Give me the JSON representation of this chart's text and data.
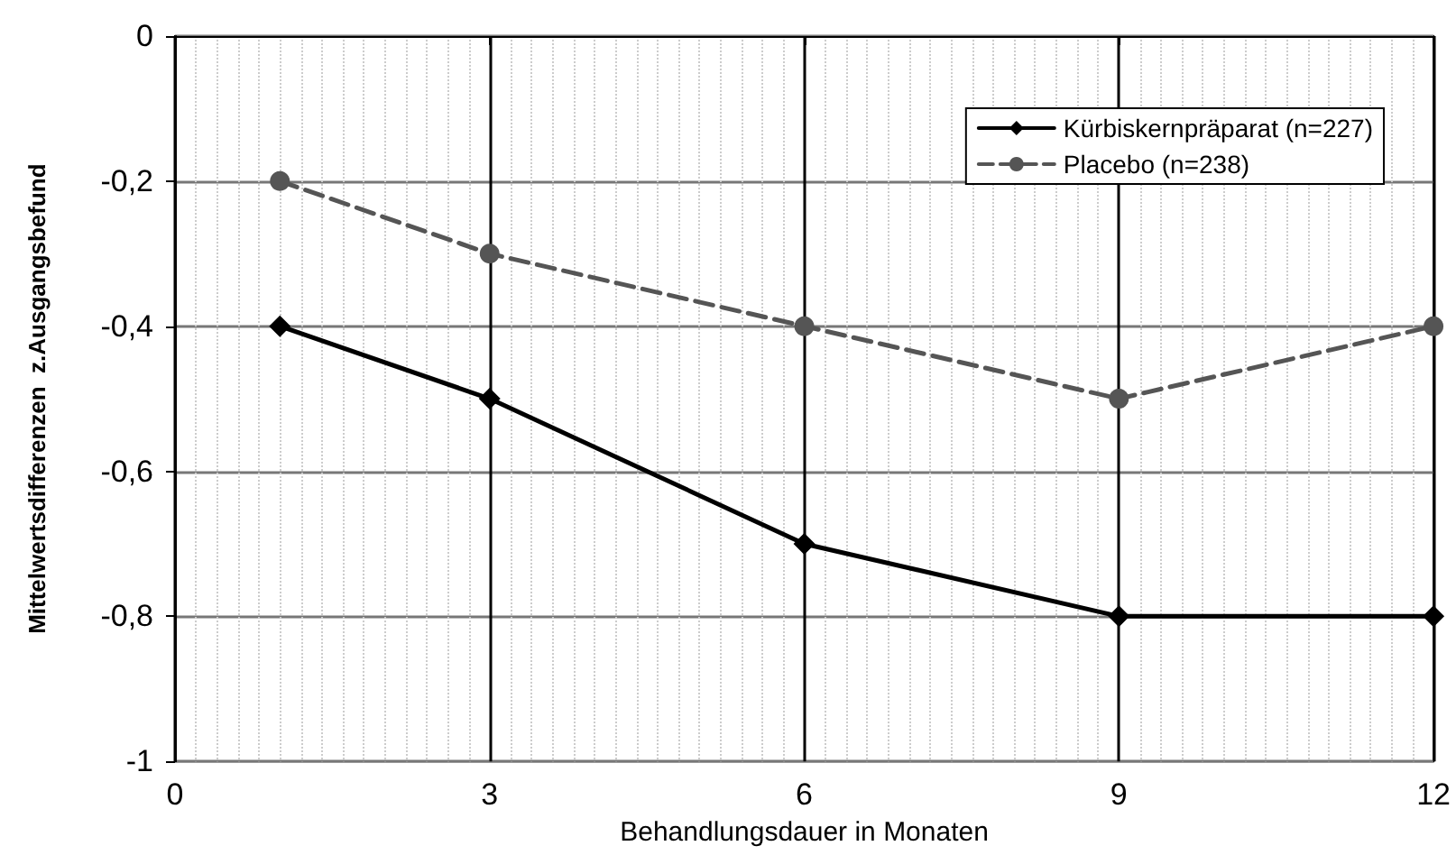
{
  "chart_data": {
    "type": "line",
    "xlabel": "Behandlungsdauer in Monaten",
    "ylabel": "Mittelwertsdifferenzen  z.Ausgangsbefund",
    "x": [
      1,
      3,
      6,
      9,
      12
    ],
    "series": [
      {
        "name": "Kürbiskernpräparat (n=227)",
        "color": "#000000",
        "values": [
          -0.4,
          -0.5,
          -0.7,
          -0.8,
          -0.8
        ],
        "marker": "diamond",
        "line_style": "solid"
      },
      {
        "name": "Placebo (n=238)",
        "color": "#555555",
        "values": [
          -0.2,
          -0.3,
          -0.4,
          -0.5,
          -0.4
        ],
        "marker": "circle",
        "line_style": "dashed"
      }
    ],
    "xlim": [
      0,
      12
    ],
    "xticks": [
      0,
      3,
      6,
      9,
      12
    ],
    "ylim": [
      -1,
      0
    ],
    "yticks": [
      {
        "value": -1,
        "label": "-1"
      },
      {
        "value": -0.8,
        "label": "-0,8"
      },
      {
        "value": -0.6,
        "label": "-0,6"
      },
      {
        "value": -0.4,
        "label": "-0,4"
      },
      {
        "value": -0.2,
        "label": "-0,2"
      },
      {
        "value": 0,
        "label": "0"
      }
    ],
    "grid": true,
    "legend": "top right"
  }
}
